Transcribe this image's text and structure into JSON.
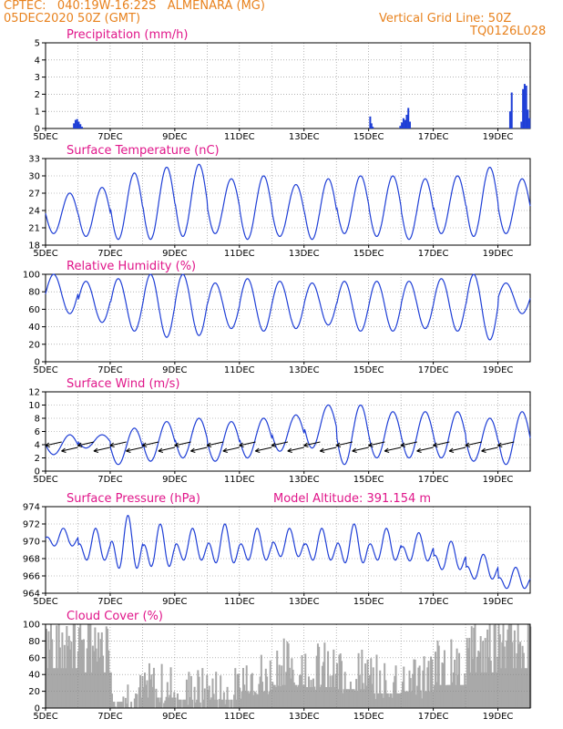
{
  "header": {
    "line1_left": "CPTEC:   040:19W-16:22S   ALMENARA (MG)",
    "line2_left": "05DEC2020 50Z (GMT)",
    "line2_right": "Vertical Grid Line: 50Z",
    "line3_right": "TQ0126L028"
  },
  "colors": {
    "header": "#e8821e",
    "title": "#e0168a",
    "series": "#1f3fd6",
    "cloud": "#a9a9a9"
  },
  "date_labels": [
    "5DEC",
    "7DEC",
    "9DEC",
    "11DEC",
    "13DEC",
    "15DEC",
    "17DEC",
    "19DEC"
  ],
  "chart_data": [
    {
      "type": "bar",
      "title": "Precipitation (mm/h)",
      "x_range_days": [
        5,
        20
      ],
      "ylim": [
        0,
        5
      ],
      "yticks": [
        "0",
        "1",
        "2",
        "3",
        "4",
        "5"
      ],
      "grid": true,
      "bars": [
        [
          5.85,
          0.3
        ],
        [
          5.9,
          0.5
        ],
        [
          5.95,
          0.55
        ],
        [
          6.0,
          0.4
        ],
        [
          6.05,
          0.25
        ],
        [
          6.1,
          0.1
        ],
        [
          15.02,
          0.7
        ],
        [
          15.06,
          0.3
        ],
        [
          15.1,
          0.1
        ],
        [
          15.95,
          0.15
        ],
        [
          16.0,
          0.35
        ],
        [
          16.05,
          0.6
        ],
        [
          16.1,
          0.5
        ],
        [
          16.15,
          0.8
        ],
        [
          16.2,
          1.2
        ],
        [
          16.25,
          0.4
        ],
        [
          19.35,
          1.0
        ],
        [
          19.4,
          2.1
        ],
        [
          19.7,
          0.4
        ],
        [
          19.75,
          2.3
        ],
        [
          19.8,
          2.6
        ],
        [
          19.85,
          2.5
        ],
        [
          19.9,
          1.1
        ],
        [
          19.95,
          0.6
        ]
      ]
    },
    {
      "type": "line",
      "title": "Surface Temperature (nC)",
      "x_range_days": [
        5,
        20
      ],
      "ylim": [
        18,
        33
      ],
      "yticks": [
        "18",
        "21",
        "24",
        "27",
        "30",
        "33"
      ],
      "grid": true,
      "daily_min": [
        20,
        19.5,
        19,
        19,
        19.5,
        20,
        19,
        19.5,
        19,
        20,
        19.5,
        19,
        20,
        19.5,
        20
      ],
      "daily_max": [
        27,
        28,
        30.5,
        31.5,
        32,
        29.5,
        30,
        28.5,
        29.5,
        30,
        30,
        29.5,
        30,
        31.5,
        29.5
      ],
      "series_name": ""
    },
    {
      "type": "line",
      "title": "Relative Humidity (%)",
      "x_range_days": [
        5,
        20
      ],
      "ylim": [
        0,
        100
      ],
      "yticks": [
        "0",
        "20",
        "40",
        "60",
        "80",
        "100"
      ],
      "grid": true,
      "daily_max": [
        100,
        92,
        95,
        100,
        100,
        90,
        95,
        92,
        90,
        92,
        92,
        92,
        95,
        100,
        90
      ],
      "daily_min": [
        55,
        45,
        35,
        28,
        30,
        38,
        35,
        38,
        42,
        35,
        35,
        38,
        35,
        25,
        55
      ]
    },
    {
      "type": "line",
      "title": "Surface Wind (m/s)",
      "x_range_days": [
        5,
        20
      ],
      "ylim": [
        0,
        12
      ],
      "yticks": [
        "0",
        "2",
        "4",
        "6",
        "8",
        "10",
        "12"
      ],
      "grid": true,
      "daily_max": [
        5.5,
        5.5,
        6.5,
        7.5,
        8,
        7.5,
        8,
        8.5,
        10,
        10,
        9,
        9,
        9,
        8,
        9
      ],
      "daily_min": [
        2.5,
        3.5,
        1,
        1.5,
        2,
        1.5,
        2,
        3,
        3.5,
        1,
        2,
        2,
        2,
        1.5,
        1
      ]
    },
    {
      "type": "line",
      "title": "Surface Pressure (hPa)",
      "annotation": "Model Altitude: 391.154 m",
      "x_range_days": [
        5,
        20
      ],
      "ylim": [
        964,
        974
      ],
      "yticks": [
        "964",
        "966",
        "968",
        "970",
        "972",
        "974"
      ],
      "grid": true,
      "daily_max": [
        971.5,
        971.5,
        973,
        972,
        971.5,
        972,
        971.5,
        971.5,
        971.5,
        972,
        971.5,
        971,
        970,
        968.5,
        967
      ],
      "daily_min": [
        969,
        967,
        965.5,
        966,
        967,
        966.5,
        967,
        967.5,
        967,
        966.5,
        967,
        967,
        966,
        965,
        964
      ]
    },
    {
      "type": "area",
      "title": "Cloud Cover (%)",
      "x_range_days": [
        5,
        20
      ],
      "ylim": [
        0,
        100
      ],
      "yticks": [
        "0",
        "20",
        "40",
        "60",
        "80",
        "100"
      ],
      "grid": true,
      "daily_mean": [
        95,
        85,
        15,
        25,
        20,
        20,
        40,
        55,
        50,
        45,
        35,
        40,
        55,
        85,
        95
      ]
    }
  ]
}
